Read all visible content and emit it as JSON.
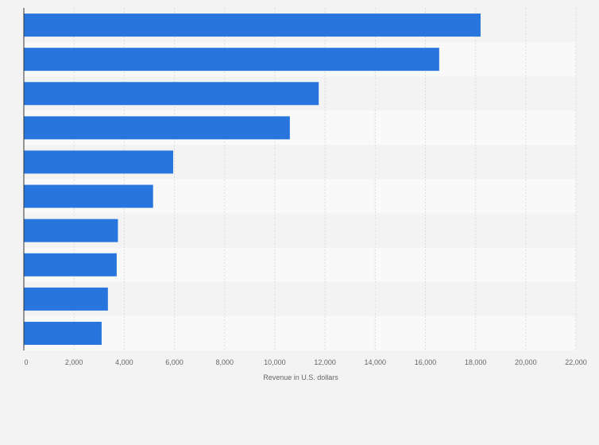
{
  "chart_data": {
    "type": "bar",
    "orientation": "horizontal",
    "title": "",
    "xlabel": "Revenue in U.S. dollars",
    "ylabel": "",
    "categories": [
      "",
      "",
      "",
      "",
      "",
      "",
      "",
      "",
      "",
      ""
    ],
    "values": [
      18200,
      16550,
      11750,
      10600,
      5950,
      5150,
      3750,
      3700,
      3350,
      3100
    ],
    "xlim": [
      0,
      22000
    ],
    "xticks": [
      0,
      2000,
      4000,
      6000,
      8000,
      10000,
      12000,
      14000,
      16000,
      18000,
      20000,
      22000
    ],
    "xtick_labels": [
      "0",
      "2,000",
      "4,000",
      "6,000",
      "8,000",
      "10,000",
      "12,000",
      "14,000",
      "16,000",
      "18,000",
      "20,000",
      "22,000"
    ],
    "grid": true,
    "legend": "none",
    "colors": {
      "bar": "#2876dd",
      "background": "#f3f3f3",
      "band_light": "#f9f9f9",
      "band_dark": "#f3f3f3",
      "grid": "#dcdcdc",
      "axis": "#333333"
    }
  }
}
